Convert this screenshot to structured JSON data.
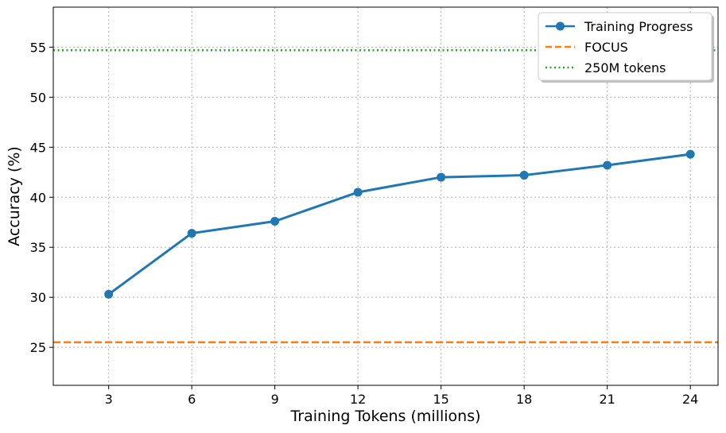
{
  "chart_data": {
    "type": "line",
    "title": "",
    "xlabel": "Training Tokens (millions)",
    "ylabel": "Accuracy (%)",
    "x": [
      3,
      6,
      9,
      12,
      15,
      18,
      21,
      24
    ],
    "xticks": [
      3,
      6,
      9,
      12,
      15,
      18,
      21,
      24
    ],
    "yticks": [
      25,
      30,
      35,
      40,
      45,
      50,
      55
    ],
    "xlim": [
      1.0,
      25.0
    ],
    "ylim": [
      21.2,
      59.0
    ],
    "grid": true,
    "legend_position": "top-right",
    "series": [
      {
        "name": "Training Progress",
        "style": "solid-marker",
        "color": "#1f77b4",
        "values": [
          30.3,
          36.4,
          37.6,
          40.5,
          42.0,
          42.2,
          43.2,
          44.3
        ]
      }
    ],
    "reference_lines": [
      {
        "name": "FOCUS",
        "style": "dashed",
        "color": "#ff7f0e",
        "y": 25.5
      },
      {
        "name": "250M tokens",
        "style": "dotted",
        "color": "#2ca02c",
        "y": 54.7
      }
    ]
  }
}
